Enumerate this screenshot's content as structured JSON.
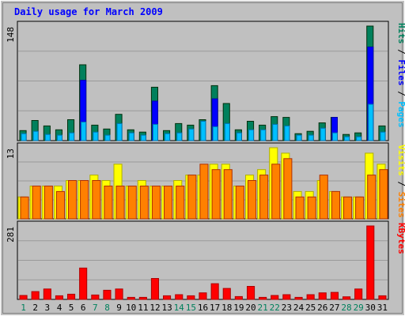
{
  "chart_data": [
    {
      "type": "bar",
      "title": "Daily usage for March 2009",
      "categories": [
        "1",
        "2",
        "3",
        "4",
        "5",
        "6",
        "7",
        "8",
        "9",
        "10",
        "11",
        "12",
        "13",
        "14",
        "15",
        "16",
        "17",
        "18",
        "19",
        "20",
        "21",
        "22",
        "23",
        "24",
        "25",
        "26",
        "27",
        "28",
        "29",
        "30",
        "31"
      ],
      "weekend_days": [
        1,
        7,
        8,
        14,
        15,
        21,
        22,
        28,
        29
      ],
      "ylim": [
        0,
        148
      ],
      "ytick_label": "148",
      "side_labels": [
        "Hits",
        "Files",
        "Pages"
      ],
      "series": [
        {
          "name": "Hits",
          "color": "#00805c",
          "values": [
            13,
            26,
            19,
            14,
            27,
            98,
            20,
            15,
            34,
            14,
            11,
            69,
            13,
            22,
            20,
            27,
            71,
            48,
            14,
            25,
            20,
            31,
            30,
            9,
            12,
            23,
            30,
            8,
            10,
            148,
            19
          ]
        },
        {
          "name": "Files",
          "color": "#0000ff",
          "values": [
            0,
            0,
            0,
            0,
            0,
            78,
            0,
            0,
            0,
            0,
            0,
            51,
            0,
            0,
            0,
            0,
            54,
            0,
            0,
            0,
            0,
            0,
            0,
            0,
            0,
            0,
            30,
            0,
            0,
            121,
            0
          ]
        },
        {
          "name": "Pages",
          "color": "#00c0ff",
          "values": [
            9,
            12,
            8,
            7,
            10,
            24,
            11,
            7,
            22,
            10,
            7,
            21,
            9,
            10,
            15,
            25,
            18,
            22,
            10,
            14,
            14,
            21,
            19,
            7,
            7,
            16,
            10,
            5,
            5,
            47,
            11
          ]
        }
      ]
    },
    {
      "type": "bar",
      "ylim": [
        0,
        13
      ],
      "ytick_label": "13",
      "side_labels": [
        "Visits",
        "Sites"
      ],
      "series": [
        {
          "name": "Visits",
          "color": "#ffff00",
          "values": [
            4,
            6,
            6,
            6,
            7,
            7,
            8,
            7,
            10,
            6,
            7,
            6,
            6,
            7,
            8,
            8,
            10,
            10,
            6,
            8,
            9,
            13,
            12,
            5,
            5,
            7,
            5,
            4,
            4,
            12,
            10
          ]
        },
        {
          "name": "Sites",
          "color": "#ff8000",
          "values": [
            4,
            6,
            6,
            5,
            7,
            7,
            7,
            6,
            6,
            6,
            6,
            6,
            6,
            6,
            8,
            10,
            9,
            9,
            6,
            7,
            8,
            10,
            11,
            4,
            4,
            8,
            5,
            4,
            4,
            8,
            9
          ]
        }
      ]
    },
    {
      "type": "bar",
      "ylim": [
        0,
        281
      ],
      "ytick_label": "281",
      "side_labels": [
        "KBytes"
      ],
      "series": [
        {
          "name": "KBytes",
          "color": "#ff0000",
          "values": [
            15,
            30,
            40,
            14,
            20,
            120,
            17,
            35,
            40,
            8,
            8,
            80,
            14,
            18,
            14,
            25,
            60,
            42,
            11,
            50,
            8,
            15,
            18,
            8,
            18,
            25,
            27,
            10,
            40,
            281,
            14
          ]
        }
      ]
    }
  ]
}
